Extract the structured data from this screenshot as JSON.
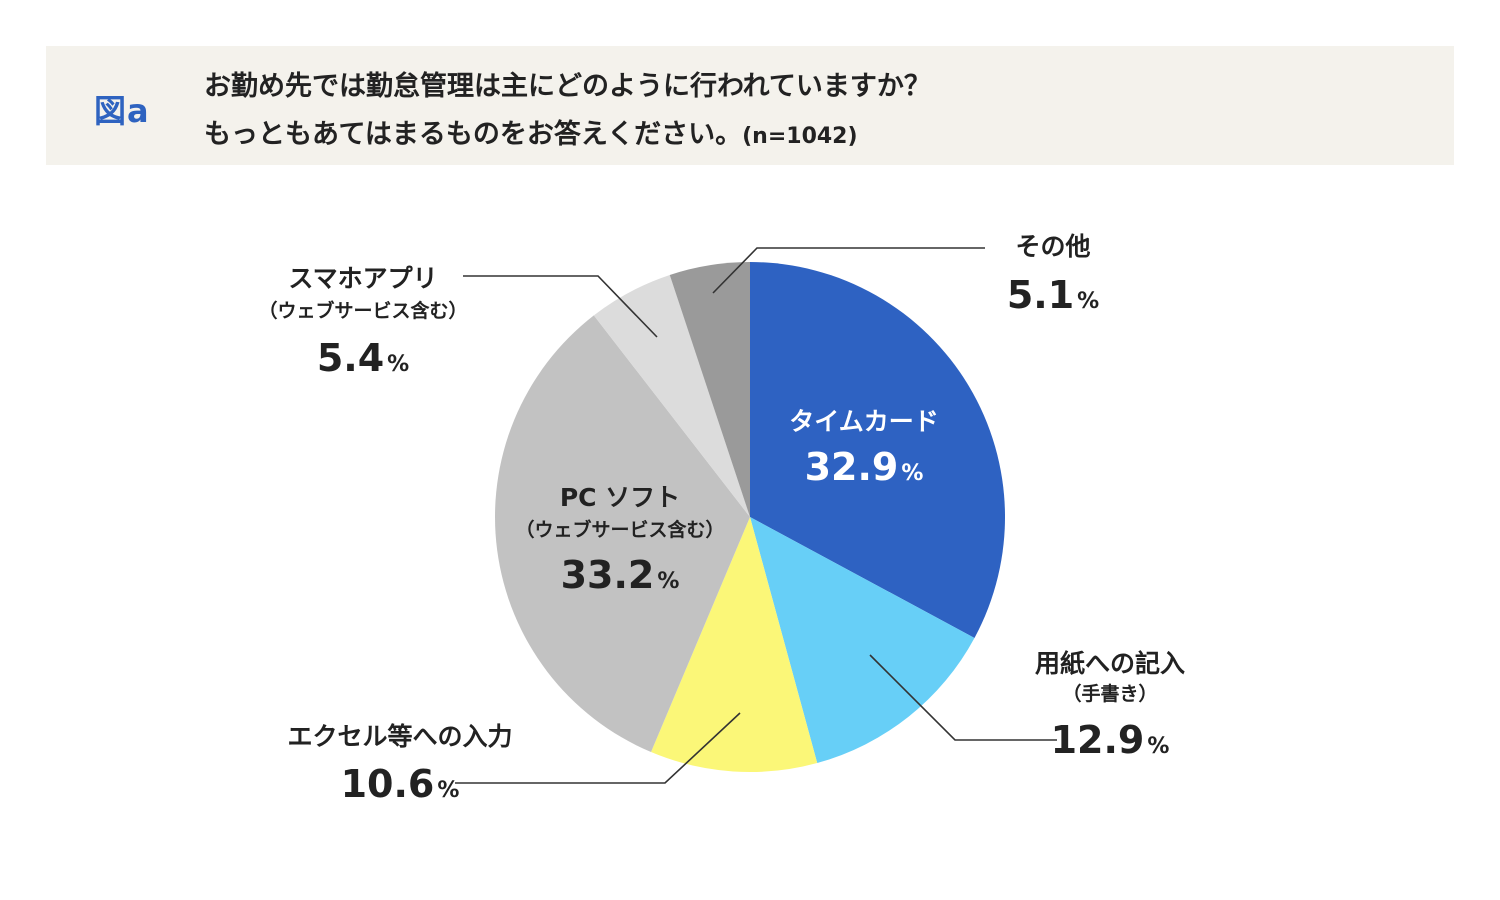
{
  "header": {
    "figure_label": "図a",
    "question_line1": "お勤め先では勤怠管理は主にどのように行われていますか？",
    "question_line2": "もっともあてはまるものをお答えください。",
    "sample_size": "(n=1042)"
  },
  "chart_data": {
    "type": "pie",
    "title": "お勤め先では勤怠管理は主にどのように行われていますか？もっともあてはまるものをお答えください。(n=1042)",
    "unit": "%",
    "start_angle": "12 o'clock",
    "direction": "clockwise",
    "slices": [
      {
        "name": "タイムカード",
        "sub": "",
        "value": 32.9,
        "value_text": "32.9",
        "color": "#2e62c2",
        "label_color": "#ffffff"
      },
      {
        "name": "用紙への記入",
        "sub": "（手書き）",
        "value": 12.9,
        "value_text": "12.9",
        "color": "#67cff7",
        "label_color": "#222222"
      },
      {
        "name": "エクセル等への入力",
        "sub": "",
        "value": 10.6,
        "value_text": "10.6",
        "color": "#fbf778",
        "label_color": "#222222"
      },
      {
        "name": "PC ソフト",
        "sub": "（ウェブサービス含む）",
        "value": 33.2,
        "value_text": "33.2",
        "color": "#c2c2c2",
        "label_color": "#222222"
      },
      {
        "name": "スマホアプリ",
        "sub": "（ウェブサービス含む）",
        "value": 5.4,
        "value_text": "5.4",
        "color": "#dcdcdc",
        "label_color": "#222222"
      },
      {
        "name": "その他",
        "sub": "",
        "value": 5.1,
        "value_text": "5.1",
        "color": "#9a9a9a",
        "label_color": "#222222"
      }
    ],
    "percent_sign": "%"
  }
}
